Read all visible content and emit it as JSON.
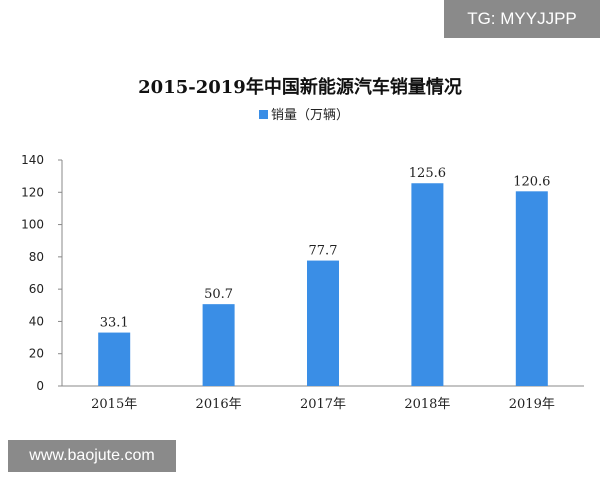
{
  "watermark_tag": "TG: MYYJJPP",
  "site_label": "www.baojute.com",
  "chart_data": {
    "type": "bar",
    "title": "2015-2019年中国新能源汽车销量情况",
    "legend": "销量（万辆）",
    "legend_position": "top-center",
    "categories": [
      "2015年",
      "2016年",
      "2017年",
      "2018年",
      "2019年"
    ],
    "values": [
      33.1,
      50.7,
      77.7,
      125.6,
      120.6
    ],
    "value_labels": [
      "33.1",
      "50.7",
      "77.7",
      "125.6",
      "120.6"
    ],
    "yticks": [
      0,
      20,
      40,
      60,
      80,
      100,
      120,
      140
    ],
    "ylim": [
      0,
      140
    ],
    "grid": false,
    "bar_color": "#3a8ee6"
  }
}
